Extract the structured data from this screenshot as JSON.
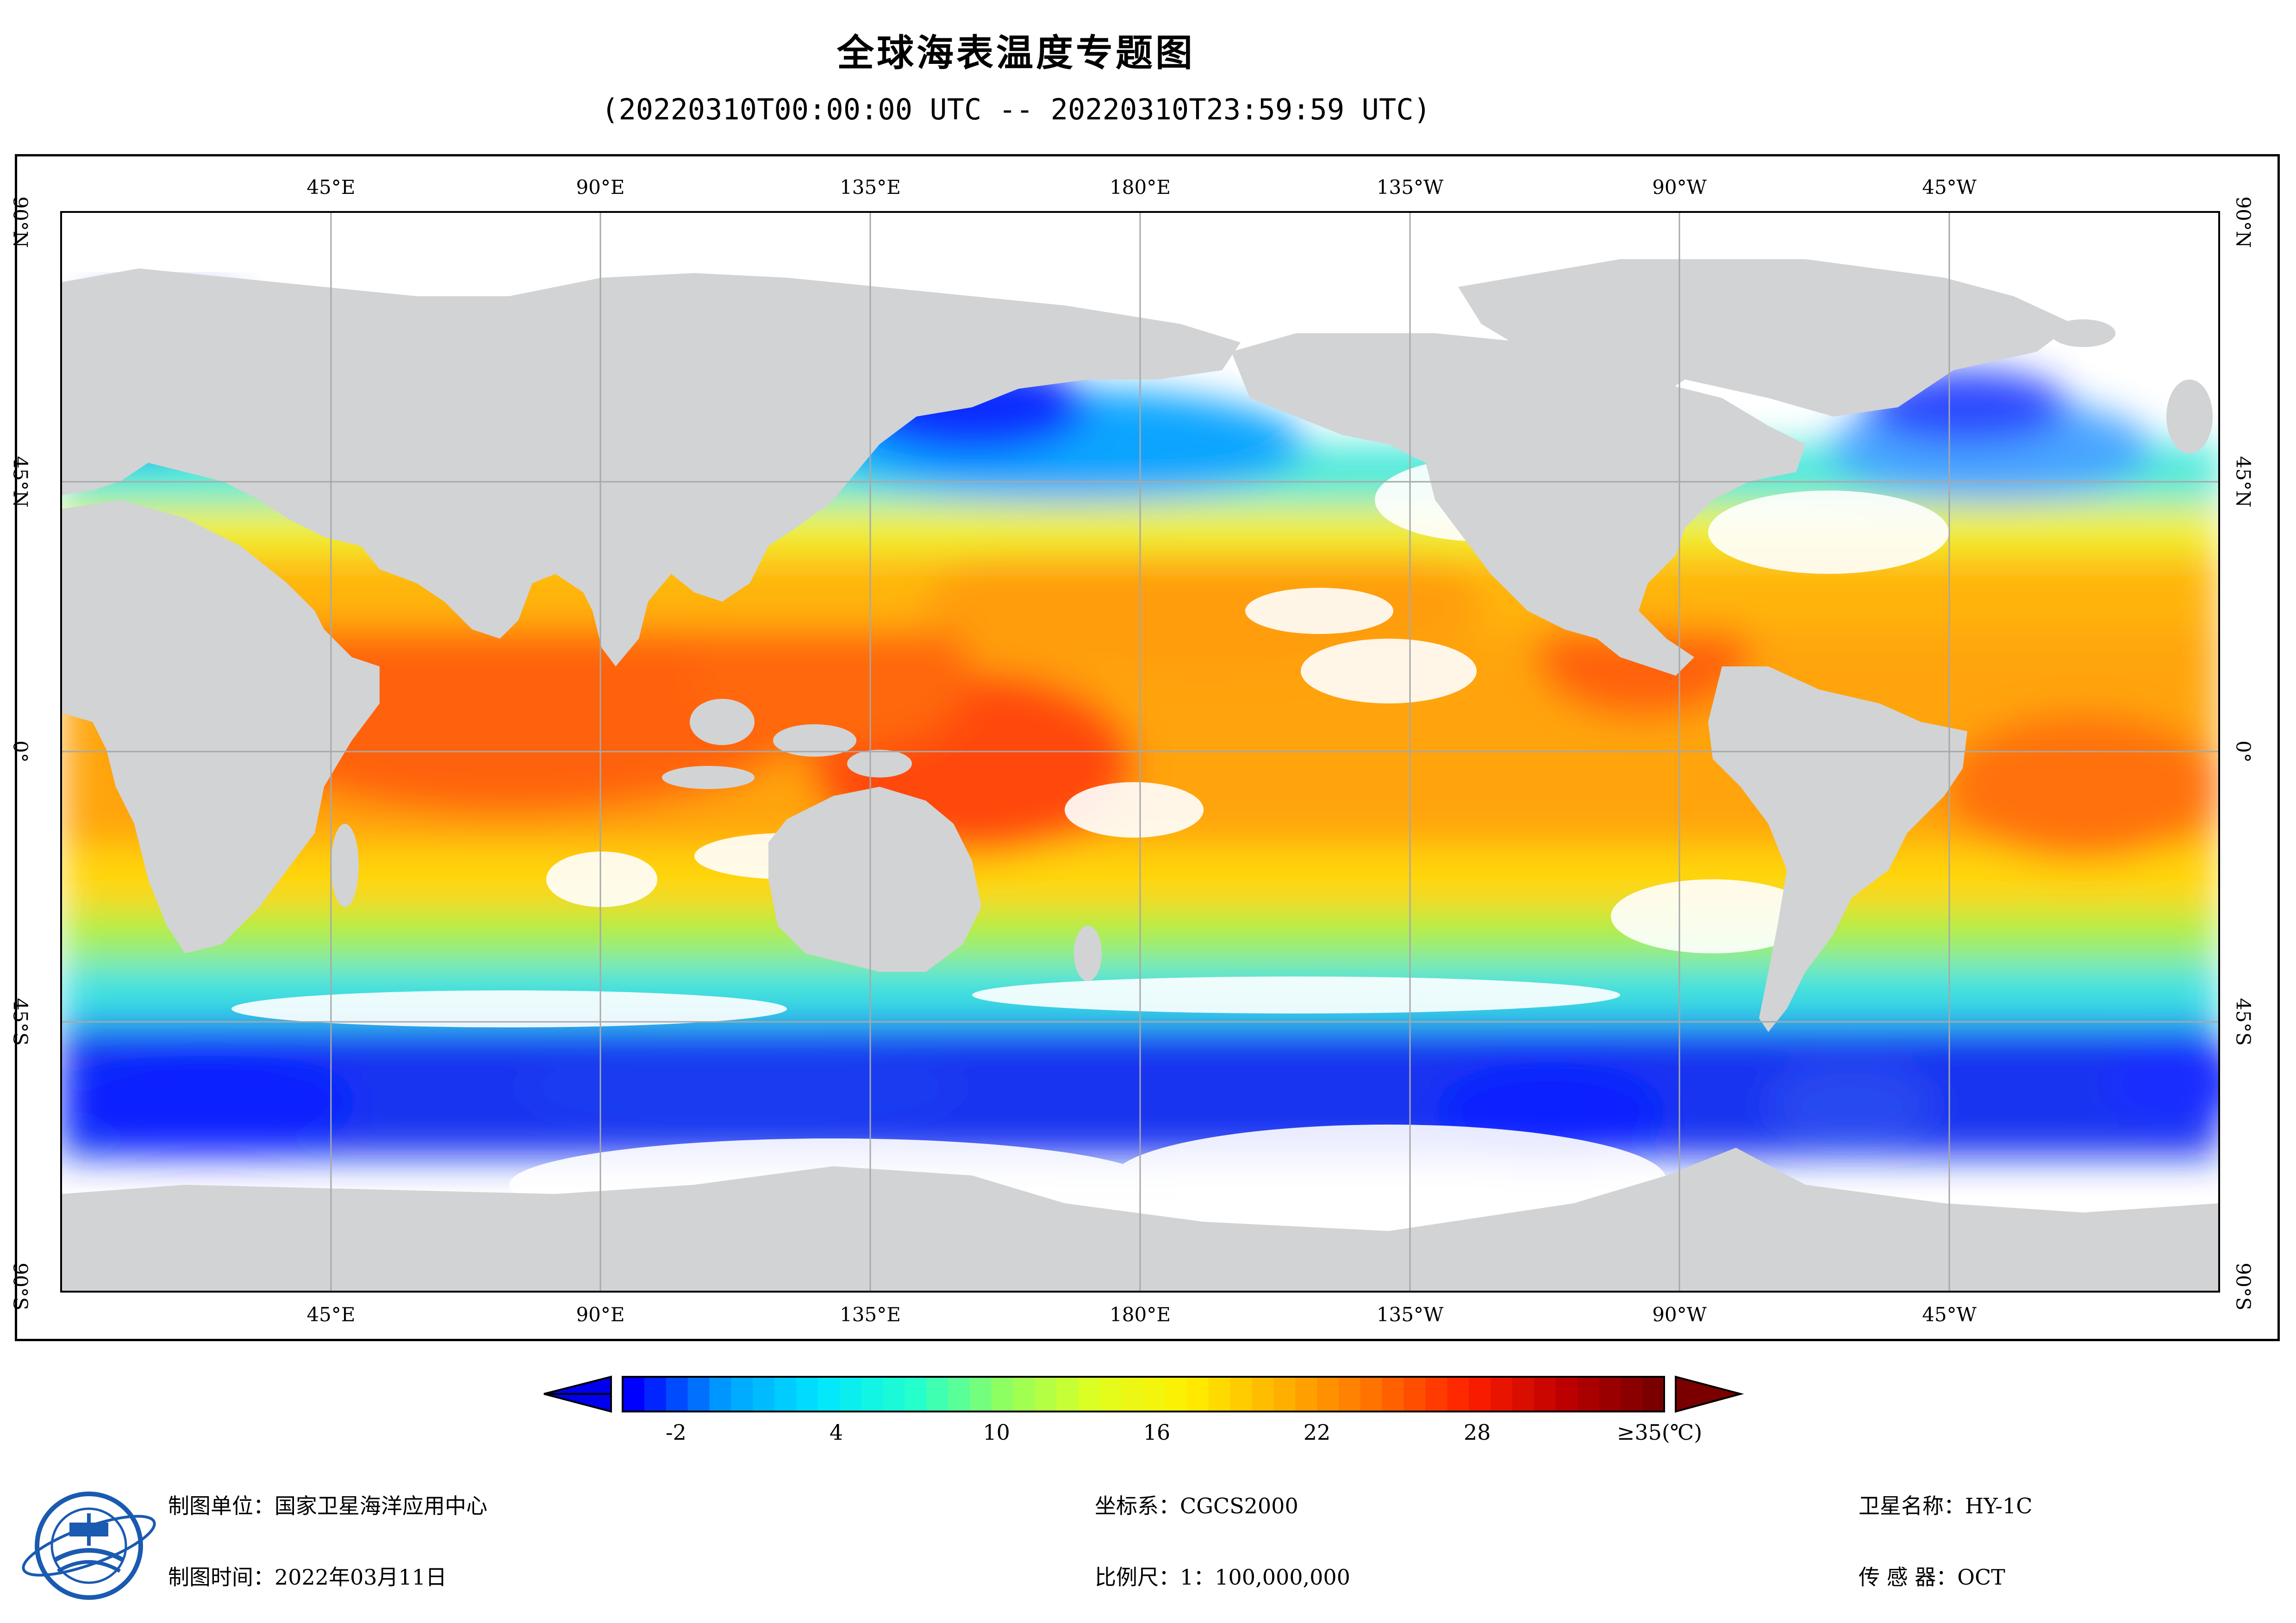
{
  "title": "全球海表温度专题图",
  "subtitle": "(20220310T00:00:00 UTC -- 20220310T23:59:59 UTC)",
  "map": {
    "projection_units": "degrees",
    "lon_range": [
      0,
      360
    ],
    "lat_range": [
      -90,
      90
    ],
    "colors": {
      "land": "#d2d3d5",
      "no_data": "#ffffff",
      "grid": "#a8a8a8",
      "frame": "#000000"
    },
    "lon_labels": [
      "45°E",
      "90°E",
      "135°E",
      "180°E",
      "135°W",
      "90°W",
      "45°W"
    ],
    "lat_labels": [
      "90°N",
      "45°N",
      "0°",
      "45°S",
      "90°S"
    ]
  },
  "colorbar": {
    "min": -4,
    "max": 35,
    "unit": "(℃)",
    "tick_labels": [
      "-2",
      "4",
      "10",
      "16",
      "22",
      "28",
      "≥35(℃)"
    ],
    "tick_values": [
      -2,
      4,
      10,
      16,
      22,
      28,
      35
    ],
    "colors": [
      "#0000ff",
      "#00a0ff",
      "#00e5ff",
      "#20ffd0",
      "#90ff60",
      "#e0ff20",
      "#ffee00",
      "#ffb000",
      "#ff7000",
      "#ff2000",
      "#c00000",
      "#7a0000"
    ],
    "left_arrow_color": "#0000ee",
    "right_arrow_color": "#7a0000"
  },
  "footer": {
    "unit_label": "制图单位：",
    "unit_value": "国家卫星海洋应用中心",
    "time_label": "制图时间：",
    "time_value": "2022年03月11日",
    "crs_label": "坐标系：",
    "crs_value": "CGCS2000",
    "scale_label": "比例尺：",
    "scale_value": "1：100,000,000",
    "satellite_label": "卫星名称：",
    "satellite_value": "HY-1C",
    "sensor_label": "传 感 器：",
    "sensor_value": "OCT"
  },
  "logo": {
    "icon": "nsoas-emblem-icon",
    "ring_color": "#1a5ab0"
  }
}
